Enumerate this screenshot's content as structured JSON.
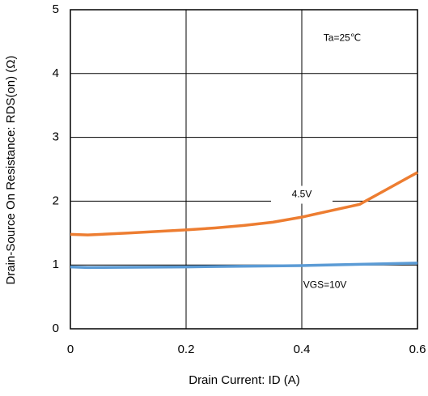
{
  "chart_data": {
    "type": "line",
    "xlabel": "Drain Current: ID (A)",
    "ylabel": "Drain-Source On Resistance: RDS(on) (Ω)",
    "annotations": [
      {
        "text": "Ta=25℃",
        "x": 0.47,
        "y": 4.55
      },
      {
        "text": "4.5V",
        "x": 0.4,
        "y": 2.1
      },
      {
        "text": "VGS=10V",
        "x": 0.44,
        "y": 0.68
      }
    ],
    "xlim": [
      0,
      0.6
    ],
    "xticks": [
      0,
      0.2,
      0.4,
      0.6
    ],
    "ylim": [
      0,
      5
    ],
    "yticks": [
      0,
      1,
      2,
      3,
      4,
      5
    ],
    "grid": true,
    "series": [
      {
        "name": "4.5V",
        "color": "#ed7d31",
        "x": [
          0,
          0.03,
          0.1,
          0.2,
          0.25,
          0.3,
          0.35,
          0.4,
          0.45,
          0.5,
          0.55,
          0.6
        ],
        "values": [
          1.48,
          1.47,
          1.5,
          1.55,
          1.58,
          1.62,
          1.67,
          1.75,
          1.85,
          1.95,
          2.2,
          2.45
        ]
      },
      {
        "name": "VGS=10V",
        "color": "#5b9bd5",
        "x": [
          0,
          0.03,
          0.2,
          0.4,
          0.5,
          0.6
        ],
        "values": [
          0.97,
          0.96,
          0.97,
          0.99,
          1.01,
          1.03
        ]
      }
    ]
  }
}
